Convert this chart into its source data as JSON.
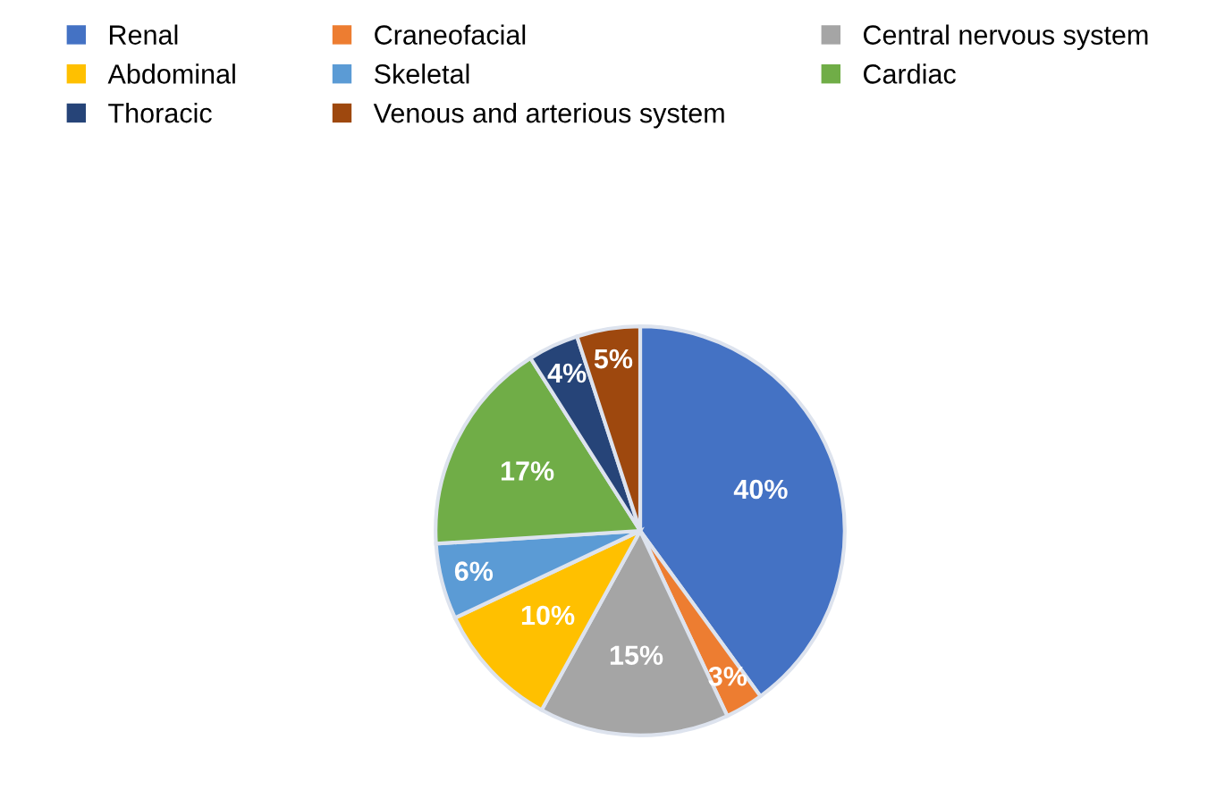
{
  "chart_data": {
    "type": "pie",
    "categories": [
      "Renal",
      "Craneofacial",
      "Central nervous system",
      "Abdominal",
      "Skeletal",
      "Cardiac",
      "Thoracic",
      "Venous and arterious system"
    ],
    "values": [
      40,
      3,
      15,
      10,
      6,
      17,
      4,
      5
    ],
    "colors": [
      "#4472c4",
      "#ed7d31",
      "#a5a5a5",
      "#ffc000",
      "#5b9bd5",
      "#70ad47",
      "#264478",
      "#9e480e"
    ],
    "value_labels": [
      "40%",
      "3%",
      "15%",
      "10%",
      "6%",
      "17%",
      "4%",
      "5%"
    ],
    "legend": "top"
  }
}
